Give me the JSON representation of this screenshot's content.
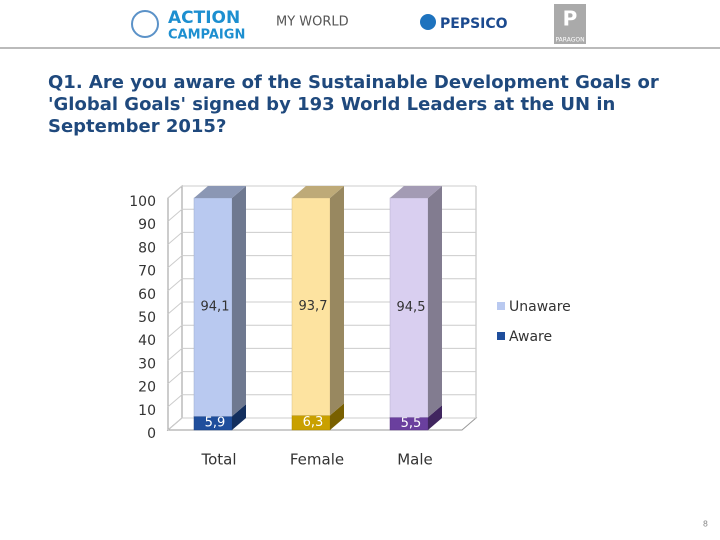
{
  "header": {
    "logos": [
      "ACTION",
      "CAMPAIGN",
      "MY WORLD",
      "PEPSICO",
      "P",
      "PARAGON"
    ]
  },
  "chart_data": {
    "type": "stacked_bar_3d",
    "title": "Q1. Are you aware of the Sustainable Development Goals or 'Global Goals' signed by 193 World Leaders at the UN in September 2015?",
    "categories": [
      "Total",
      "Female",
      "Male"
    ],
    "series": [
      {
        "name": "Unaware",
        "color": "#b9c9f0",
        "colors": [
          "#b9c9f0",
          "#fde3a0",
          "#d9cff0"
        ],
        "values": [
          94.1,
          93.7,
          94.5
        ],
        "value_labels": [
          "94,1",
          "93,7",
          "94,5"
        ]
      },
      {
        "name": "Aware",
        "color": "#1f4e9c",
        "colors": [
          "#1f4e9c",
          "#c9a000",
          "#6a3f9e"
        ],
        "values": [
          5.9,
          6.3,
          5.5
        ],
        "value_labels": [
          "5,9",
          "6,3",
          "5,5"
        ]
      }
    ],
    "ylim": [
      0,
      100
    ],
    "yticks": [
      0,
      10,
      20,
      30,
      40,
      50,
      60,
      70,
      80,
      90,
      100
    ],
    "grid": true,
    "legend": "right"
  },
  "page_number": "8"
}
